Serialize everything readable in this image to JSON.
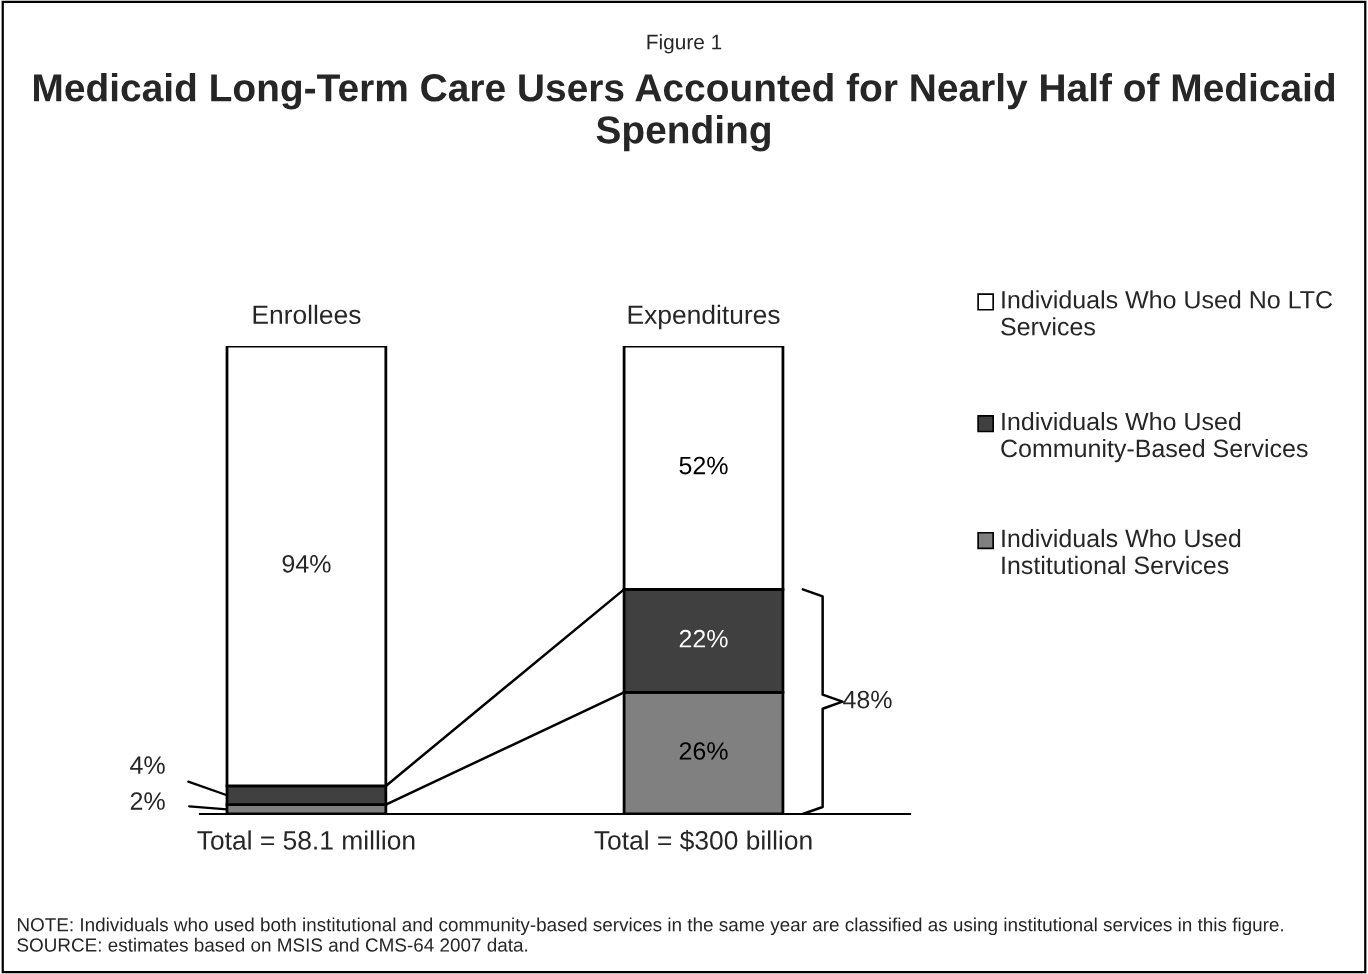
{
  "chart_data": {
    "type": "bar",
    "subtitle": "Figure 1",
    "title": "Medicaid Long-Term Care Users Accounted for Nearly Half of Medicaid Spending",
    "categories": [
      "Enrollees",
      "Expenditures"
    ],
    "stacked": true,
    "series": [
      {
        "name": "Individuals Who Used Institutional Services",
        "color": "#808080",
        "values": [
          2,
          26
        ],
        "value_labels": [
          "2%",
          "26%"
        ]
      },
      {
        "name": "Individuals Who Used Community-Based Services",
        "color": "#404040",
        "values": [
          4,
          22
        ],
        "value_labels": [
          "4%",
          "22%"
        ]
      },
      {
        "name": "Individuals Who Used No LTC Services",
        "color": "#ffffff",
        "values": [
          94,
          52
        ],
        "value_labels": [
          "94%",
          "52%"
        ]
      }
    ],
    "annotations": [
      "48%",
      "Total = 58.1 million",
      "Total = $300 billion",
      "NOTE: Individuals who used both institutional and community-based services in the same year are classified as using institutional services in this figure.  SOURCE: estimates based on MSIS and CMS-64 2007 data."
    ],
    "legend": "right"
  }
}
